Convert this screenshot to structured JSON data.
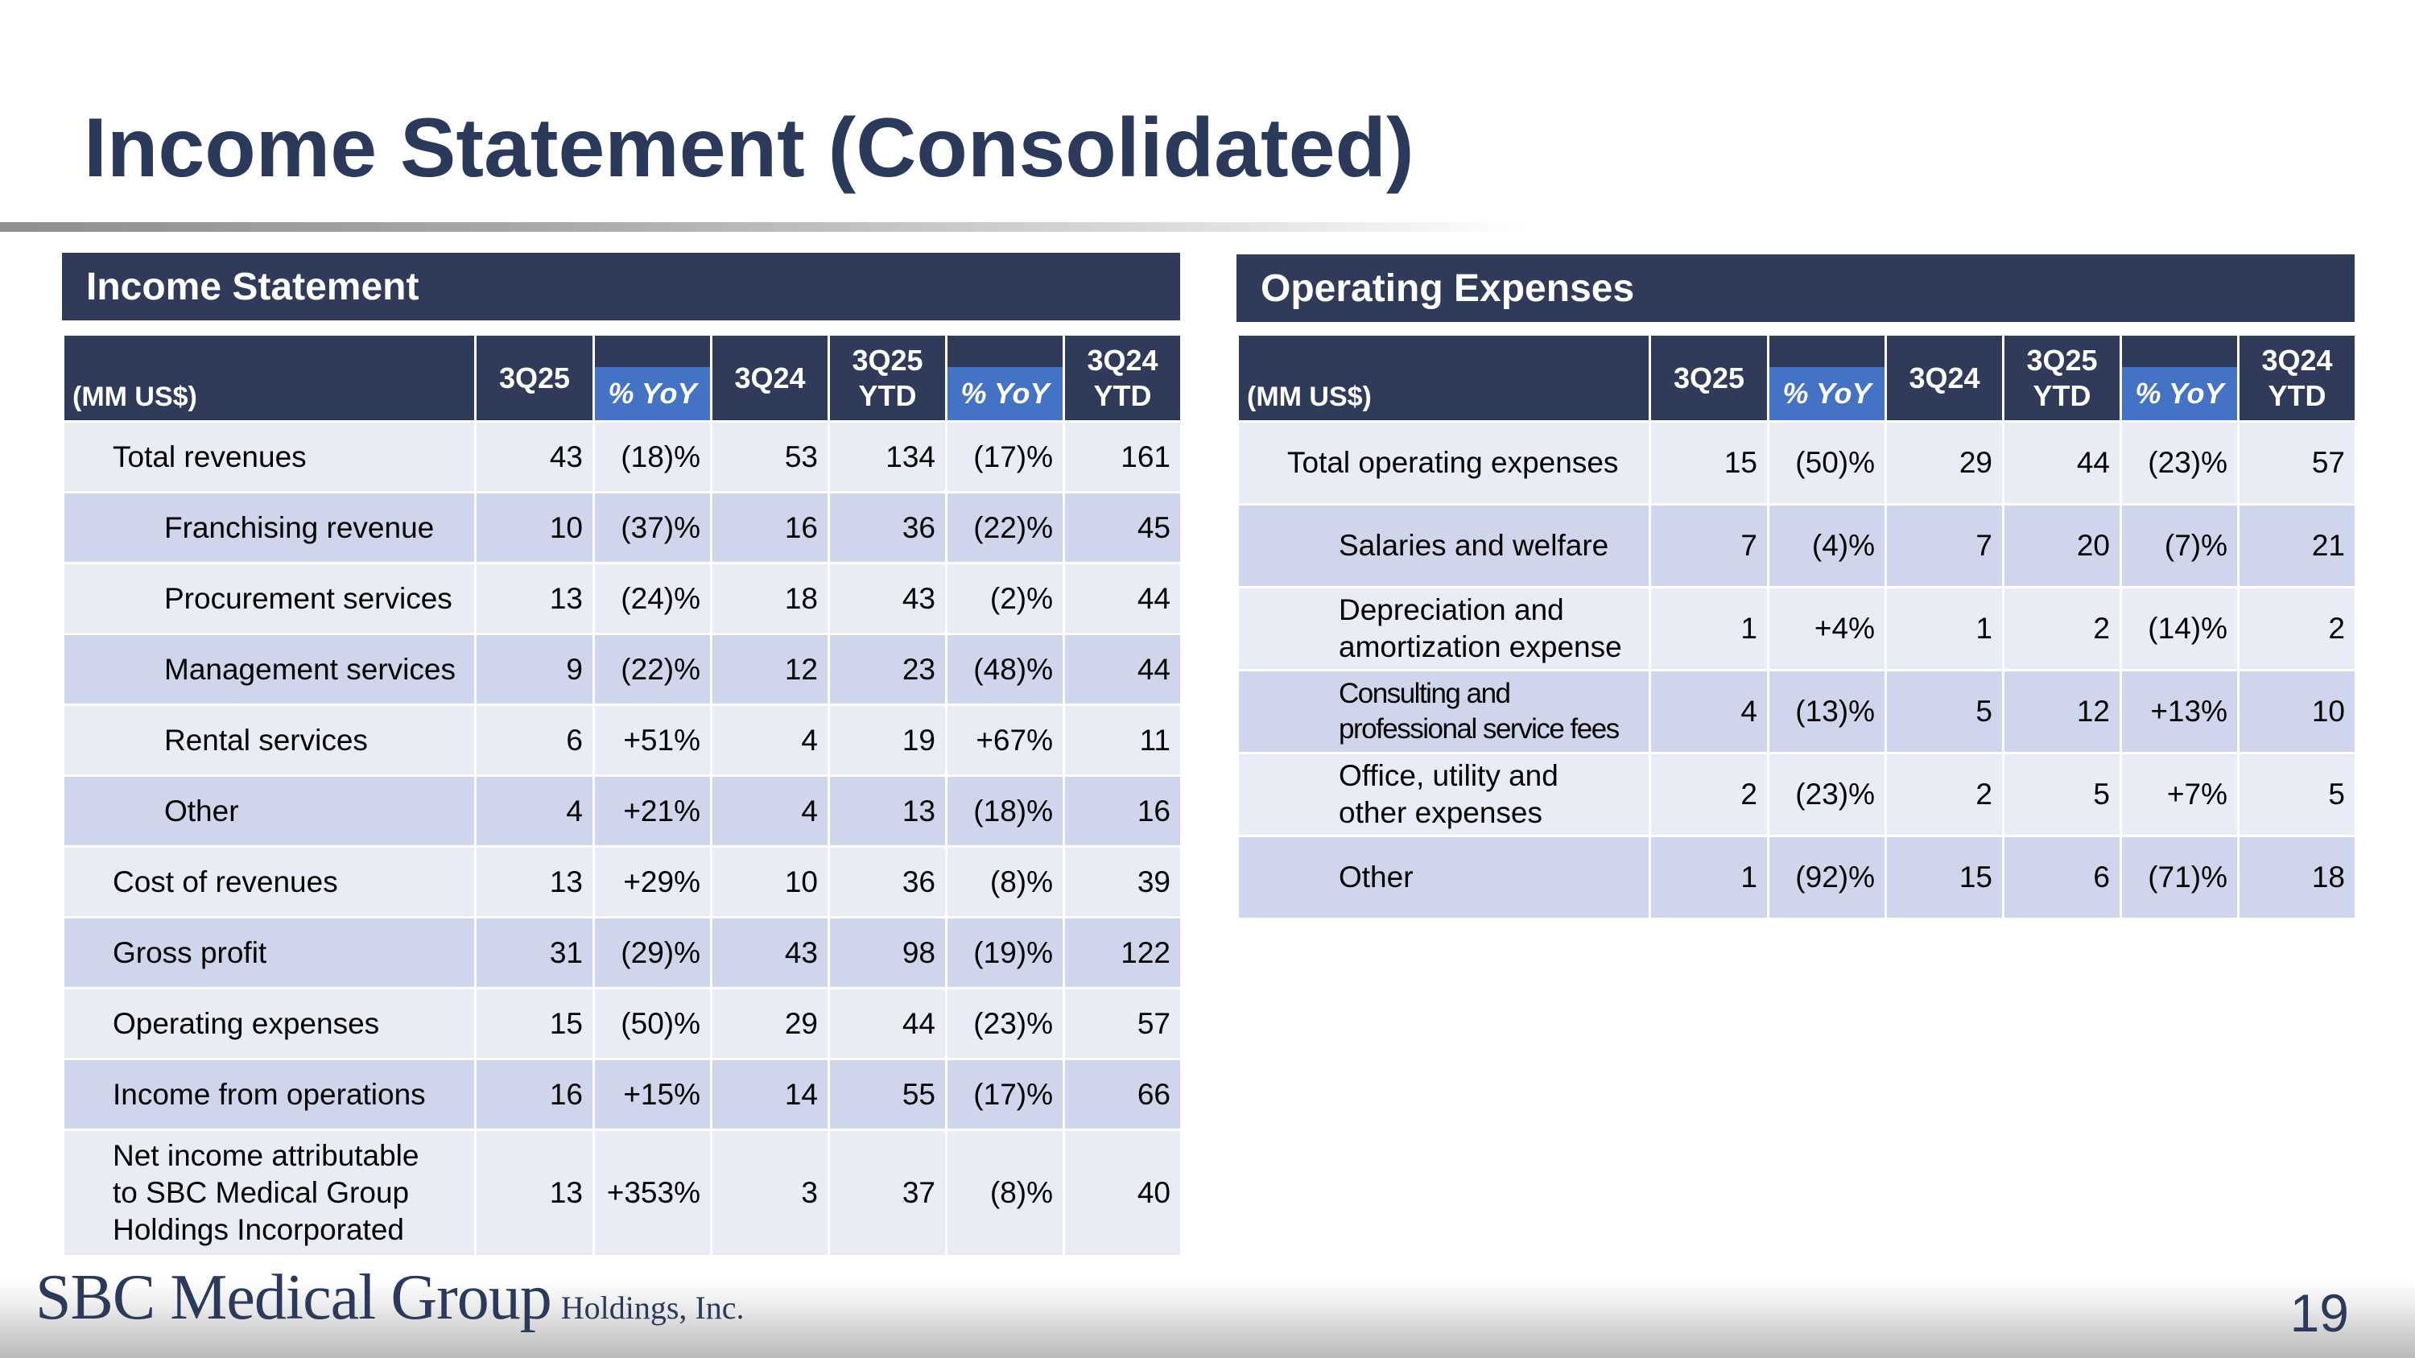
{
  "page": {
    "title": "Income Statement (Consolidated)",
    "page_number": "19",
    "logo": {
      "main": "SBC Medical Group",
      "sub": "Holdings, Inc."
    }
  },
  "colors": {
    "navy": "#2f3b59",
    "title_navy": "#2b3a5b",
    "yoy_blue": "#4472c4",
    "row_light": "#e9ebf5",
    "row_dark": "#cfd5ea"
  },
  "income_statement": {
    "header": "Income Statement",
    "columns": {
      "unit": "(MM US$)",
      "c1": "3Q25",
      "c2": "% YoY",
      "c3": "3Q24",
      "c4a": "3Q25",
      "c4b": "YTD",
      "c5": "% YoY",
      "c6a": "3Q24",
      "c6b": "YTD"
    },
    "rows": [
      {
        "label": "Total revenues",
        "q325": "43",
        "yoy": "(18)%",
        "q324": "53",
        "ytd25": "134",
        "ytd_yoy": "(17)%",
        "ytd24": "161"
      },
      {
        "label": "Franchising revenue",
        "q325": "10",
        "yoy": "(37)%",
        "q324": "16",
        "ytd25": "36",
        "ytd_yoy": "(22)%",
        "ytd24": "45"
      },
      {
        "label": "Procurement services",
        "q325": "13",
        "yoy": "(24)%",
        "q324": "18",
        "ytd25": "43",
        "ytd_yoy": "(2)%",
        "ytd24": "44"
      },
      {
        "label": "Management services",
        "q325": "9",
        "yoy": "(22)%",
        "q324": "12",
        "ytd25": "23",
        "ytd_yoy": "(48)%",
        "ytd24": "44"
      },
      {
        "label": "Rental services",
        "q325": "6",
        "yoy": "+51%",
        "q324": "4",
        "ytd25": "19",
        "ytd_yoy": "+67%",
        "ytd24": "11"
      },
      {
        "label": "Other",
        "q325": "4",
        "yoy": "+21%",
        "q324": "4",
        "ytd25": "13",
        "ytd_yoy": "(18)%",
        "ytd24": "16"
      },
      {
        "label": "Cost of revenues",
        "q325": "13",
        "yoy": "+29%",
        "q324": "10",
        "ytd25": "36",
        "ytd_yoy": "(8)%",
        "ytd24": "39"
      },
      {
        "label": "Gross profit",
        "q325": "31",
        "yoy": "(29)%",
        "q324": "43",
        "ytd25": "98",
        "ytd_yoy": "(19)%",
        "ytd24": "122"
      },
      {
        "label": "Operating expenses",
        "q325": "15",
        "yoy": "(50)%",
        "q324": "29",
        "ytd25": "44",
        "ytd_yoy": "(23)%",
        "ytd24": "57"
      },
      {
        "label": "Income from operations",
        "q325": "16",
        "yoy": "+15%",
        "q324": "14",
        "ytd25": "55",
        "ytd_yoy": "(17)%",
        "ytd24": "66"
      },
      {
        "label_lines": [
          "Net income attributable",
          "to SBC Medical Group",
          "Holdings Incorporated"
        ],
        "q325": "13",
        "yoy": "+353%",
        "q324": "3",
        "ytd25": "37",
        "ytd_yoy": "(8)%",
        "ytd24": "40"
      }
    ]
  },
  "operating_expenses": {
    "header": "Operating Expenses",
    "columns": {
      "unit": "(MM US$)",
      "c1": "3Q25",
      "c2": "% YoY",
      "c3": "3Q24",
      "c4a": "3Q25",
      "c4b": "YTD",
      "c5": "% YoY",
      "c6a": "3Q24",
      "c6b": "YTD"
    },
    "rows": [
      {
        "label": "Total operating expenses",
        "q325": "15",
        "yoy": "(50)%",
        "q324": "29",
        "ytd25": "44",
        "ytd_yoy": "(23)%",
        "ytd24": "57"
      },
      {
        "label": "Salaries and welfare",
        "q325": "7",
        "yoy": "(4)%",
        "q324": "7",
        "ytd25": "20",
        "ytd_yoy": "(7)%",
        "ytd24": "21"
      },
      {
        "label_lines": [
          "Depreciation and",
          "amortization expense"
        ],
        "q325": "1",
        "yoy": "+4%",
        "q324": "1",
        "ytd25": "2",
        "ytd_yoy": "(14)%",
        "ytd24": "2"
      },
      {
        "label_lines": [
          "Consulting and",
          "professional service fees"
        ],
        "q325": "4",
        "yoy": "(13)%",
        "q324": "5",
        "ytd25": "12",
        "ytd_yoy": "+13%",
        "ytd24": "10"
      },
      {
        "label_lines": [
          "Office, utility and",
          "other expenses"
        ],
        "q325": "2",
        "yoy": "(23)%",
        "q324": "2",
        "ytd25": "5",
        "ytd_yoy": "+7%",
        "ytd24": "5"
      },
      {
        "label": "Other",
        "q325": "1",
        "yoy": "(92)%",
        "q324": "15",
        "ytd25": "6",
        "ytd_yoy": "(71)%",
        "ytd24": "18"
      }
    ]
  }
}
